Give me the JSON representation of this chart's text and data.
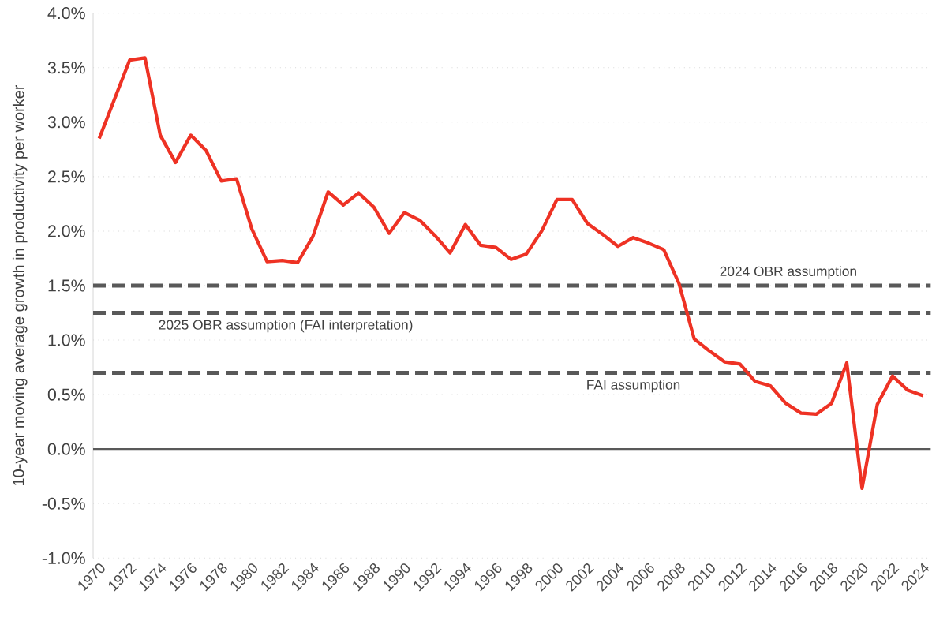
{
  "chart_data": {
    "type": "line",
    "ylabel": "10-year moving average growth in productivity per worker",
    "categories": [
      "1970",
      null,
      "1972",
      null,
      "1974",
      null,
      "1976",
      null,
      "1978",
      null,
      "1980",
      null,
      "1982",
      null,
      "1984",
      null,
      "1986",
      null,
      "1988",
      null,
      "1990",
      null,
      "1992",
      null,
      "1994",
      null,
      "1996",
      null,
      "1998",
      null,
      "2000",
      null,
      "2002",
      null,
      "2004",
      null,
      "2006",
      null,
      "2008",
      null,
      "2010",
      null,
      "2012",
      null,
      "2014",
      null,
      "2016",
      null,
      "2018",
      null,
      "2020",
      null,
      "2022",
      null,
      "2024"
    ],
    "series": [
      {
        "color": "#ee3224",
        "values": [
          2.85,
          3.21,
          3.57,
          3.59,
          2.88,
          2.63,
          2.88,
          2.74,
          2.46,
          2.48,
          2.02,
          1.72,
          1.73,
          1.71,
          1.95,
          2.36,
          2.24,
          2.35,
          2.22,
          1.98,
          2.17,
          2.1,
          1.96,
          1.8,
          2.06,
          1.87,
          1.85,
          1.74,
          1.79,
          2.0,
          2.29,
          2.29,
          2.07,
          1.97,
          1.86,
          1.94,
          1.89,
          1.83,
          1.52,
          1.01,
          0.9,
          0.8,
          0.78,
          0.62,
          0.58,
          0.42,
          0.33,
          0.32,
          0.42,
          0.79,
          -0.36,
          0.41,
          0.67,
          0.54,
          0.49
        ]
      }
    ],
    "ylim": [
      -1.0,
      4.0
    ],
    "yticks": [
      {
        "value": -1.0,
        "label": "-1.0%"
      },
      {
        "value": -0.5,
        "label": "-0.5%"
      },
      {
        "value": 0.0,
        "label": "0.0%"
      },
      {
        "value": 0.5,
        "label": "0.5%"
      },
      {
        "value": 1.0,
        "label": "1.0%"
      },
      {
        "value": 1.5,
        "label": "1.5%"
      },
      {
        "value": 2.0,
        "label": "2.0%"
      },
      {
        "value": 2.5,
        "label": "2.5%"
      },
      {
        "value": 3.0,
        "label": "3.0%"
      },
      {
        "value": 3.5,
        "label": "3.5%"
      },
      {
        "value": 4.0,
        "label": "4.0%"
      }
    ],
    "ref_lines": [
      {
        "axis": "y",
        "value": 1.5,
        "label": "2024 OBR assumption",
        "color": "#595959",
        "line_style": "dashed"
      },
      {
        "axis": "y",
        "value": 1.25,
        "label": "2025 OBR assumption (FAI interpretation)",
        "color": "#595959",
        "line_style": "dashed"
      },
      {
        "axis": "y",
        "value": 0.7,
        "label": "FAI assumption",
        "color": "#595959",
        "line_style": "dashed"
      },
      {
        "axis": "y",
        "value": 0.0,
        "color": "#595959",
        "line_style": "solid"
      }
    ],
    "grid": "y",
    "marker": "none",
    "line_style": "solid"
  }
}
